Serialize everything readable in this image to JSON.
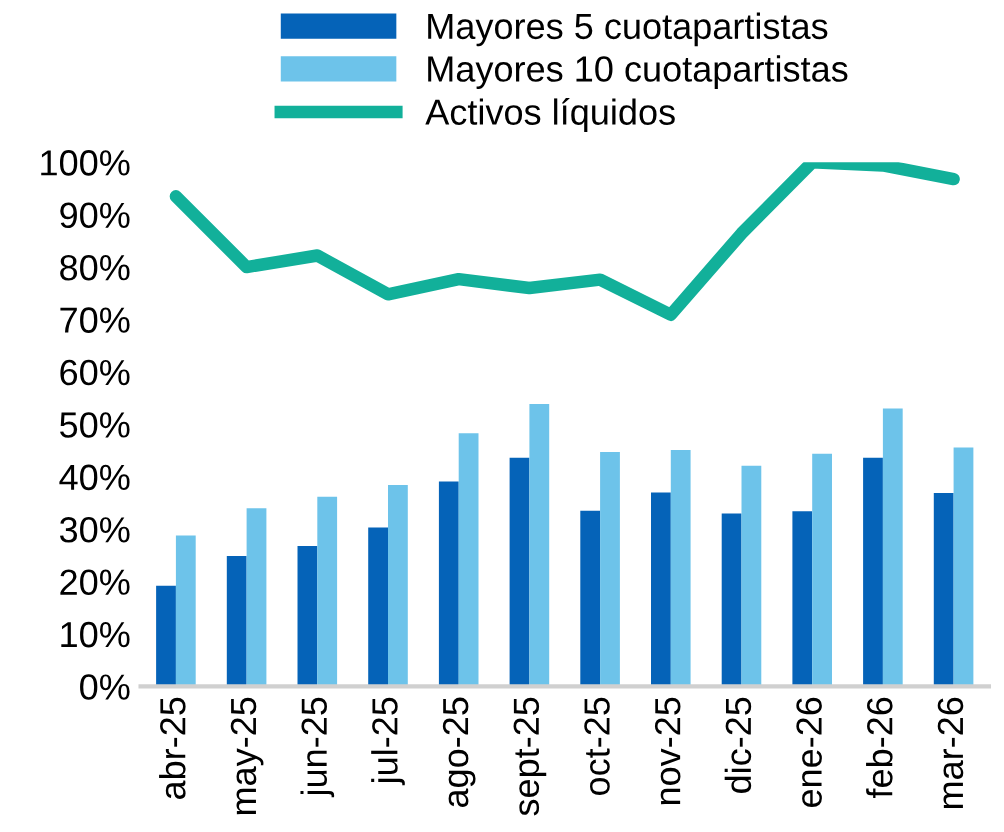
{
  "chart_data": {
    "type": "bar",
    "categories": [
      "abr-25",
      "may-25",
      "jun-25",
      "jul-25",
      "ago-25",
      "sept-25",
      "oct-25",
      "nov-25",
      "dic-25",
      "ene-26",
      "feb-26",
      "mar-26"
    ],
    "series": [
      {
        "name": "Mayores 5 cuotapartistas",
        "color": "#0563b8",
        "values": [
          19.2,
          24.9,
          26.8,
          30.3,
          39.1,
          43.6,
          33.5,
          37.0,
          33.0,
          33.4,
          43.6,
          36.9
        ]
      },
      {
        "name": "Mayores 10 cuotapartistas",
        "color": "#6dc3ea",
        "values": [
          28.8,
          34.0,
          36.2,
          38.4,
          48.3,
          53.9,
          44.7,
          45.1,
          42.1,
          44.4,
          53.0,
          45.6
        ]
      },
      {
        "name": "Activos líquidos",
        "color": "#12b09a",
        "type": "line",
        "values": [
          93.5,
          80.0,
          82.2,
          74.8,
          77.7,
          76.0,
          77.6,
          70.9,
          86.4,
          100.0,
          99.4,
          96.8
        ]
      }
    ],
    "ylim": [
      0,
      100
    ],
    "yticks": [
      {
        "value": 0,
        "label": "0%"
      },
      {
        "value": 10,
        "label": "10%"
      },
      {
        "value": 20,
        "label": "20%"
      },
      {
        "value": 30,
        "label": "30%"
      },
      {
        "value": 40,
        "label": "40%"
      },
      {
        "value": 50,
        "label": "50%"
      },
      {
        "value": 60,
        "label": "60%"
      },
      {
        "value": 70,
        "label": "70%"
      },
      {
        "value": 80,
        "label": "80%"
      },
      {
        "value": 90,
        "label": "90%"
      },
      {
        "value": 100,
        "label": "100%"
      }
    ],
    "grid": false,
    "legend": "top",
    "marker": "none",
    "line_style": "solid"
  }
}
